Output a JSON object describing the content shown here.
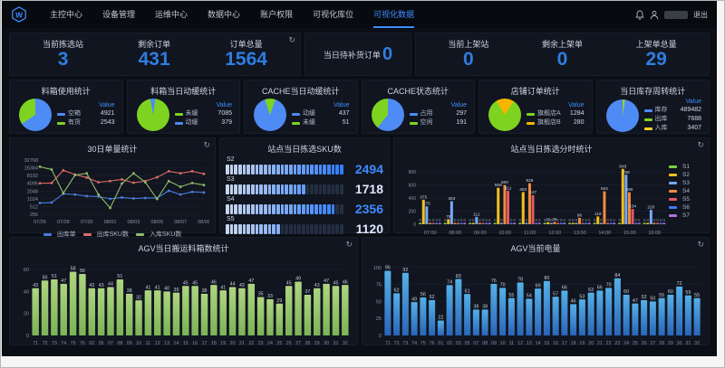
{
  "nav": {
    "items": [
      {
        "label": "主控中心",
        "active": false
      },
      {
        "label": "设备管理",
        "active": false
      },
      {
        "label": "运维中心",
        "active": false
      },
      {
        "label": "数据中心",
        "active": false
      },
      {
        "label": "账户权限",
        "active": false
      },
      {
        "label": "可视化库位",
        "active": false
      },
      {
        "label": "可视化数据",
        "active": true
      }
    ],
    "logout": "退出"
  },
  "stats_left": {
    "items": [
      {
        "label": "当前拣选站",
        "value": "3"
      },
      {
        "label": "剩余订单",
        "value": "431"
      },
      {
        "label": "订单总量",
        "value": "1564"
      }
    ]
  },
  "stats_mid": {
    "label": "当日待补货订单",
    "value": "0"
  },
  "stats_right": {
    "items": [
      {
        "label": "当前上架站",
        "value": "0"
      },
      {
        "label": "剩余上架单",
        "value": "0"
      },
      {
        "label": "上架单总量",
        "value": "29"
      }
    ]
  },
  "colors": {
    "accent_blue": "#2f7de1",
    "active_nav": "#3f8cff",
    "pie_blue": "#4e8bf5",
    "pie_green": "#7ed321",
    "pie_orange": "#f7b500",
    "pie_yellow": "#f6d32b",
    "panel_bg": "#10151f",
    "page_bg": "#0a0e15"
  },
  "chart_data": [
    {
      "id": "pie1",
      "type": "pie",
      "title": "料箱使用统计",
      "value_header": "Value",
      "rotation": -1,
      "slices": [
        {
          "label": "空箱",
          "value": 4921,
          "color": "#4e8bf5"
        },
        {
          "label": "有货",
          "value": 2543,
          "color": "#7ed321"
        }
      ]
    },
    {
      "id": "pie2",
      "type": "pie",
      "title": "料箱当日动缓统计",
      "value_header": "Value",
      "rotation": 8,
      "slices": [
        {
          "label": "未缓",
          "value": 7085,
          "color": "#7ed321"
        },
        {
          "label": "动缓",
          "value": 379,
          "color": "#4e8bf5"
        }
      ]
    },
    {
      "id": "pie3",
      "type": "pie",
      "title": "CACHE当日动缓统计",
      "value_header": "Value",
      "rotation": 19,
      "slices": [
        {
          "label": "动缓",
          "value": 437,
          "color": "#4e8bf5"
        },
        {
          "label": "未缓",
          "value": 51,
          "color": "#7ed321"
        }
      ]
    },
    {
      "id": "pie4",
      "type": "pie",
      "title": "CACHE状态统计",
      "value_header": "Value",
      "rotation": 0,
      "slices": [
        {
          "label": "占用",
          "value": 297,
          "color": "#4e8bf5"
        },
        {
          "label": "空闲",
          "value": 191,
          "color": "#7ed321"
        }
      ]
    },
    {
      "id": "pie5",
      "type": "pie",
      "title": "店铺订单统计",
      "value_header": "Value",
      "rotation": 33,
      "slices": [
        {
          "label": "旗舰店A",
          "value": 1284,
          "color": "#7ed321"
        },
        {
          "label": "旗舰店B",
          "value": 280,
          "color": "#f7b500"
        }
      ]
    },
    {
      "id": "pie6",
      "type": "pie",
      "title": "当日库存周转统计",
      "value_header": "Value",
      "rotation": 8,
      "slices": [
        {
          "label": "库存",
          "value": 489482,
          "color": "#4e8bf5"
        },
        {
          "label": "出库",
          "value": 7688,
          "color": "#7ed321"
        },
        {
          "label": "入库",
          "value": 3407,
          "color": "#f6d32b"
        }
      ]
    },
    {
      "id": "line30",
      "type": "line",
      "title": "30日单量统计",
      "x": [
        "07/26",
        "07/27",
        "07/28",
        "07/29",
        "07/30",
        "07/31",
        "08/01",
        "08/02",
        "08/03",
        "08/04",
        "08/05",
        "08/06",
        "08/07",
        "08/08",
        "08/09"
      ],
      "yticks": [
        256,
        512,
        1024,
        2048,
        4096,
        8192,
        16384,
        32768
      ],
      "series": [
        {
          "name": "出库单",
          "color": "#4a7edc",
          "values": [
            700,
            730,
            1600,
            1500,
            1300,
            1250,
            1024,
            1150,
            1050,
            1100,
            1100,
            2100,
            1500,
            1900,
            1800
          ]
        },
        {
          "name": "出库SKU数",
          "color": "#dd6b66",
          "values": [
            4096,
            4200,
            13000,
            9000,
            6800,
            4500,
            5000,
            5800,
            4300,
            5000,
            7000,
            12000,
            10000,
            12000,
            9500
          ]
        },
        {
          "name": "入库SKU数",
          "color": "#8fba6a",
          "values": [
            18000,
            14000,
            1700,
            8500,
            10000,
            1500,
            450,
            4000,
            10000,
            4500,
            1000,
            5000,
            3000,
            4200,
            3500
          ]
        }
      ]
    },
    {
      "id": "sku",
      "type": "segbar",
      "title": "站点当日拣选SKU数",
      "max": 2500,
      "segments": 28,
      "rows": [
        {
          "label": "S2",
          "value": 2494,
          "value_color": "#3f8cff"
        },
        {
          "label": "S3",
          "value": 1718,
          "value_color": "#dfe8ff"
        },
        {
          "label": "S4",
          "value": 2356,
          "value_color": "#3f8cff"
        },
        {
          "label": "S5",
          "value": 1120,
          "value_color": "#dfe8ff"
        }
      ]
    },
    {
      "id": "hourly",
      "type": "groupbar",
      "title": "站点当日拣选分时统计",
      "yticks": [
        0,
        200,
        400,
        600,
        800
      ],
      "ymax": 900,
      "categories": [
        "07:00",
        "08:00",
        "09:00",
        "10:00",
        "11:00",
        "12:00",
        "13:00",
        "14:00",
        "15:00",
        "16:00"
      ],
      "series": [
        {
          "name": "S1",
          "color": "#7bd144",
          "values": [
            0,
            0,
            0,
            0,
            0,
            0,
            0,
            0,
            0,
            0
          ]
        },
        {
          "name": "S2",
          "color": "#f2c01e",
          "values": [
            375,
            78,
            0,
            558,
            492,
            30,
            0,
            119,
            848,
            0
          ]
        },
        {
          "name": "S3",
          "color": "#79a7f7",
          "values": [
            275,
            353,
            112,
            0,
            0,
            0,
            0,
            0,
            758,
            220
          ]
        },
        {
          "name": "S4",
          "color": "#ef8b3e",
          "values": [
            0,
            0,
            0,
            600,
            628,
            36,
            98,
            504,
            490,
            0
          ]
        },
        {
          "name": "S5",
          "color": "#e25a62",
          "values": [
            0,
            0,
            0,
            511,
            447,
            0,
            0,
            0,
            234,
            0
          ]
        },
        {
          "name": "S6",
          "color": "#3e7bfa",
          "values": [
            0,
            0,
            0,
            0,
            0,
            0,
            0,
            0,
            0,
            0
          ]
        },
        {
          "name": "S7",
          "color": "#b06fe0",
          "values": [
            0,
            0,
            0,
            0,
            0,
            0,
            0,
            0,
            0,
            0
          ]
        }
      ]
    },
    {
      "id": "agvbox",
      "type": "bar",
      "title": "AGV当日搬运料箱数统计",
      "yticks": [
        0,
        20,
        40,
        60
      ],
      "ymax": 65,
      "categories": [
        "71",
        "72",
        "73",
        "74",
        "75",
        "76",
        "02",
        "05",
        "07",
        "08",
        "09",
        "10",
        "11",
        "12",
        "13",
        "14",
        "15",
        "16",
        "17",
        "18",
        "19",
        "20",
        "21",
        "22",
        "23",
        "24",
        "25",
        "26",
        "27",
        "28",
        "29",
        "30",
        "31",
        "32"
      ],
      "values": [
        43,
        50,
        51,
        47,
        58,
        56,
        43,
        43,
        44,
        51,
        38,
        32,
        41,
        41,
        40,
        39,
        45,
        45,
        38,
        46,
        41,
        44,
        43,
        47,
        35,
        33,
        29,
        45,
        49,
        37,
        43,
        47,
        45,
        46
      ],
      "color_top": "#aed581",
      "color_bottom": "#7cb356"
    },
    {
      "id": "agvbat",
      "type": "bar",
      "title": "AGV当前电量",
      "yticks": [
        0,
        25,
        50,
        75,
        100
      ],
      "ymax": 105,
      "categories": [
        "71",
        "72",
        "73",
        "74",
        "75",
        "76",
        "01",
        "02",
        "03",
        "05",
        "07",
        "08",
        "09",
        "10",
        "11",
        "12",
        "13",
        "14",
        "15",
        "16",
        "17",
        "18",
        "19",
        "20",
        "21",
        "22",
        "23",
        "24",
        "25",
        "26",
        "27",
        "28",
        "29",
        "30",
        "31",
        "32"
      ],
      "values": [
        95,
        62,
        92,
        49,
        56,
        52,
        22,
        74,
        83,
        61,
        38,
        38,
        76,
        70,
        55,
        78,
        54,
        69,
        80,
        57,
        66,
        46,
        53,
        63,
        66,
        70,
        84,
        60,
        47,
        52,
        50,
        55,
        60,
        72,
        59,
        55
      ],
      "color_top": "#55b0e8",
      "color_bottom": "#2a65b8"
    }
  ]
}
